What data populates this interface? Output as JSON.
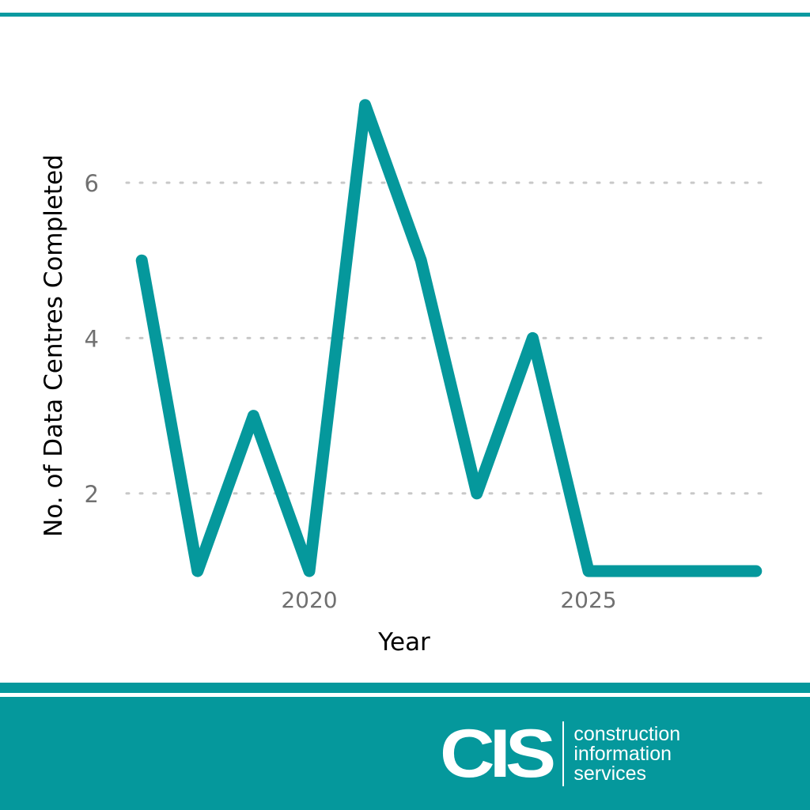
{
  "colors": {
    "accent": "#05989c",
    "line": "#05989c",
    "gridline": "#c8c8c8",
    "tick_label": "#707070",
    "axis_label": "#000000"
  },
  "chart_data": {
    "type": "line",
    "title": "",
    "xlabel": "Year",
    "ylabel": "No. of Data Centres Completed",
    "x": [
      2017,
      2018,
      2019,
      2020,
      2021,
      2022,
      2023,
      2024,
      2025,
      2026,
      2027,
      2028
    ],
    "series": [
      {
        "name": "Data Centres Completed",
        "values": [
          5,
          1,
          3,
          1,
          7,
          5,
          2,
          4,
          1,
          1,
          1,
          1
        ]
      }
    ],
    "x_ticks": [
      "2020",
      "2025"
    ],
    "y_ticks": [
      "2",
      "4",
      "6"
    ],
    "ylim": [
      1,
      7
    ],
    "xlim": [
      2017,
      2028
    ],
    "grid": "horizontal dotted",
    "legend": "none"
  },
  "footer": {
    "logo_mark": "CIS",
    "logo_lines": [
      "construction",
      "information",
      "services"
    ]
  }
}
